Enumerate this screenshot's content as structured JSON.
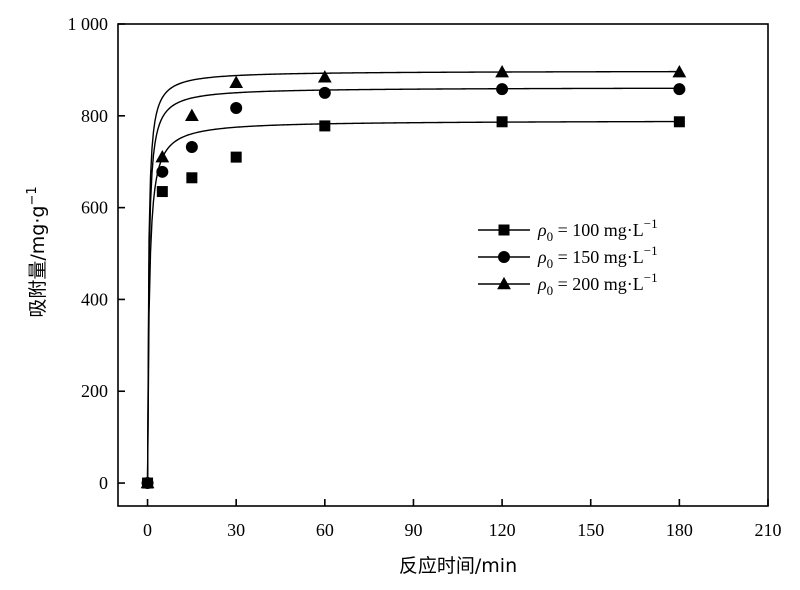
{
  "chart_data": {
    "type": "scatter",
    "xlabel": "反应时间/min",
    "ylabel": "吸附量/mg·g",
    "ylabel_unit_sup": "−1",
    "xlim": [
      -10,
      210
    ],
    "ylim": [
      -50,
      1000
    ],
    "xticks": [
      0,
      30,
      60,
      90,
      120,
      150,
      180,
      210
    ],
    "yticks": [
      0,
      200,
      400,
      600,
      800,
      1000
    ],
    "ytick_labels": [
      "0",
      "200",
      "400",
      "600",
      "800",
      "1 000"
    ],
    "legend_position": "right-middle",
    "series": [
      {
        "name": "ρ0 = 100 mg·L−1",
        "legend": {
          "symbol": "ρ",
          "sub": "0",
          "text": " = 100 mg·L",
          "sup": "−1"
        },
        "marker": "square",
        "x": [
          0,
          5,
          15,
          30,
          60,
          120,
          180
        ],
        "y": [
          0,
          635,
          665,
          710,
          778,
          787,
          787
        ],
        "fit_qe": 790,
        "fit_k": 0.0022
      },
      {
        "name": "ρ0 = 150 mg·L−1",
        "legend": {
          "symbol": "ρ",
          "sub": "0",
          "text": " = 150 mg·L",
          "sup": "−1"
        },
        "marker": "circle",
        "x": [
          0,
          5,
          15,
          30,
          60,
          120,
          180
        ],
        "y": [
          0,
          678,
          732,
          817,
          850,
          858,
          858
        ],
        "fit_qe": 862,
        "fit_k": 0.0028
      },
      {
        "name": "ρ0 = 200 mg·L−1",
        "legend": {
          "symbol": "ρ",
          "sub": "0",
          "text": " = 200 mg·L",
          "sup": "−1"
        },
        "marker": "triangle",
        "x": [
          0,
          5,
          15,
          30,
          60,
          120,
          180
        ],
        "y": [
          0,
          710,
          800,
          872,
          884,
          895,
          895
        ],
        "fit_qe": 898,
        "fit_k": 0.0032
      }
    ]
  }
}
